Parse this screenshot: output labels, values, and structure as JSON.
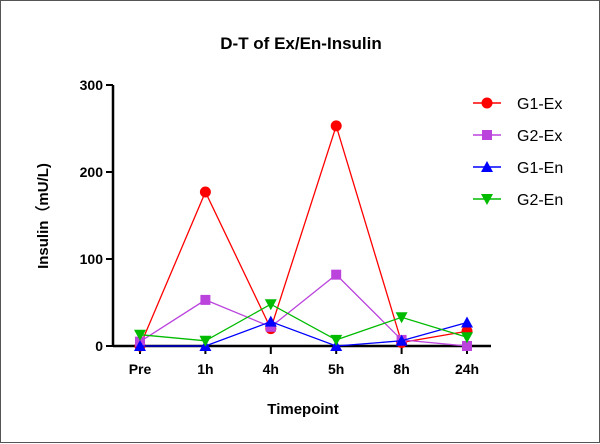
{
  "chart_data": {
    "type": "line",
    "title": "D-T of Ex/En-Insulin",
    "xlabel": "Timepoint",
    "ylabel": "Insulin（mU/L)",
    "categories": [
      "Pre",
      "1h",
      "4h",
      "5h",
      "8h",
      "24h"
    ],
    "ylim": [
      0,
      300
    ],
    "yticks": [
      0,
      100,
      200,
      300
    ],
    "grid": false,
    "legend": "right",
    "series": [
      {
        "name": "G1-Ex",
        "color": "#ff0000",
        "marker": "circle",
        "values": [
          0,
          177,
          20,
          253,
          4,
          17
        ]
      },
      {
        "name": "G2-Ex",
        "color": "#bb44dd",
        "marker": "square",
        "values": [
          5,
          53,
          22,
          82,
          7,
          0
        ]
      },
      {
        "name": "G1-En",
        "color": "#0000ff",
        "marker": "triangle-up",
        "values": [
          0,
          0,
          28,
          0,
          6,
          27
        ]
      },
      {
        "name": "G2-En",
        "color": "#00bb00",
        "marker": "triangle-down",
        "values": [
          13,
          6,
          48,
          7,
          33,
          10
        ]
      }
    ]
  }
}
